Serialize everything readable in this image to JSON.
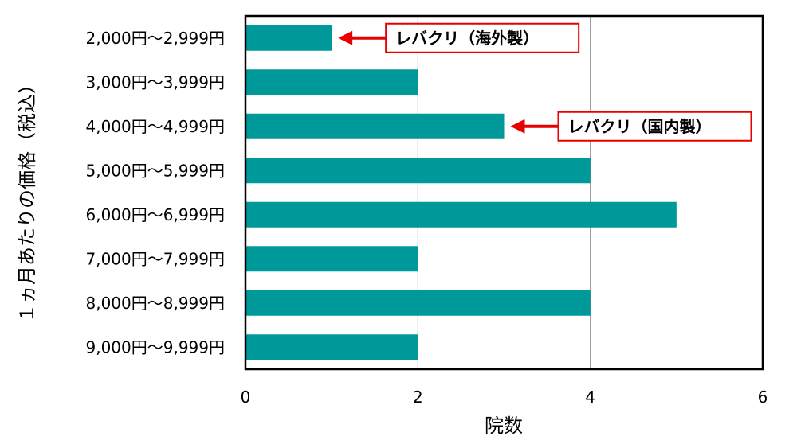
{
  "chart_data": {
    "type": "bar",
    "orientation": "horizontal",
    "categories": [
      "2,000円～2,999円",
      "3,000円～3,999円",
      "4,000円～4,999円",
      "5,000円～5,999円",
      "6,000円～6,999円",
      "7,000円～7,999円",
      "8,000円～8,999円",
      "9,000円～9,999円"
    ],
    "values": [
      1,
      2,
      3,
      4,
      5,
      2,
      4,
      2
    ],
    "xlabel": "院数",
    "ylabel": "１ヵ月あたりの価格（税込）",
    "xlim": [
      0,
      6
    ],
    "xticks": [
      "0",
      "2",
      "4",
      "6"
    ],
    "grid": "vertical",
    "bar_color": "#009999",
    "annotations": [
      {
        "category_index": 0,
        "text": "レバクリ（海外製）"
      },
      {
        "category_index": 2,
        "text": "レバクリ（国内製）"
      }
    ],
    "annotation_color": "#e60000"
  }
}
